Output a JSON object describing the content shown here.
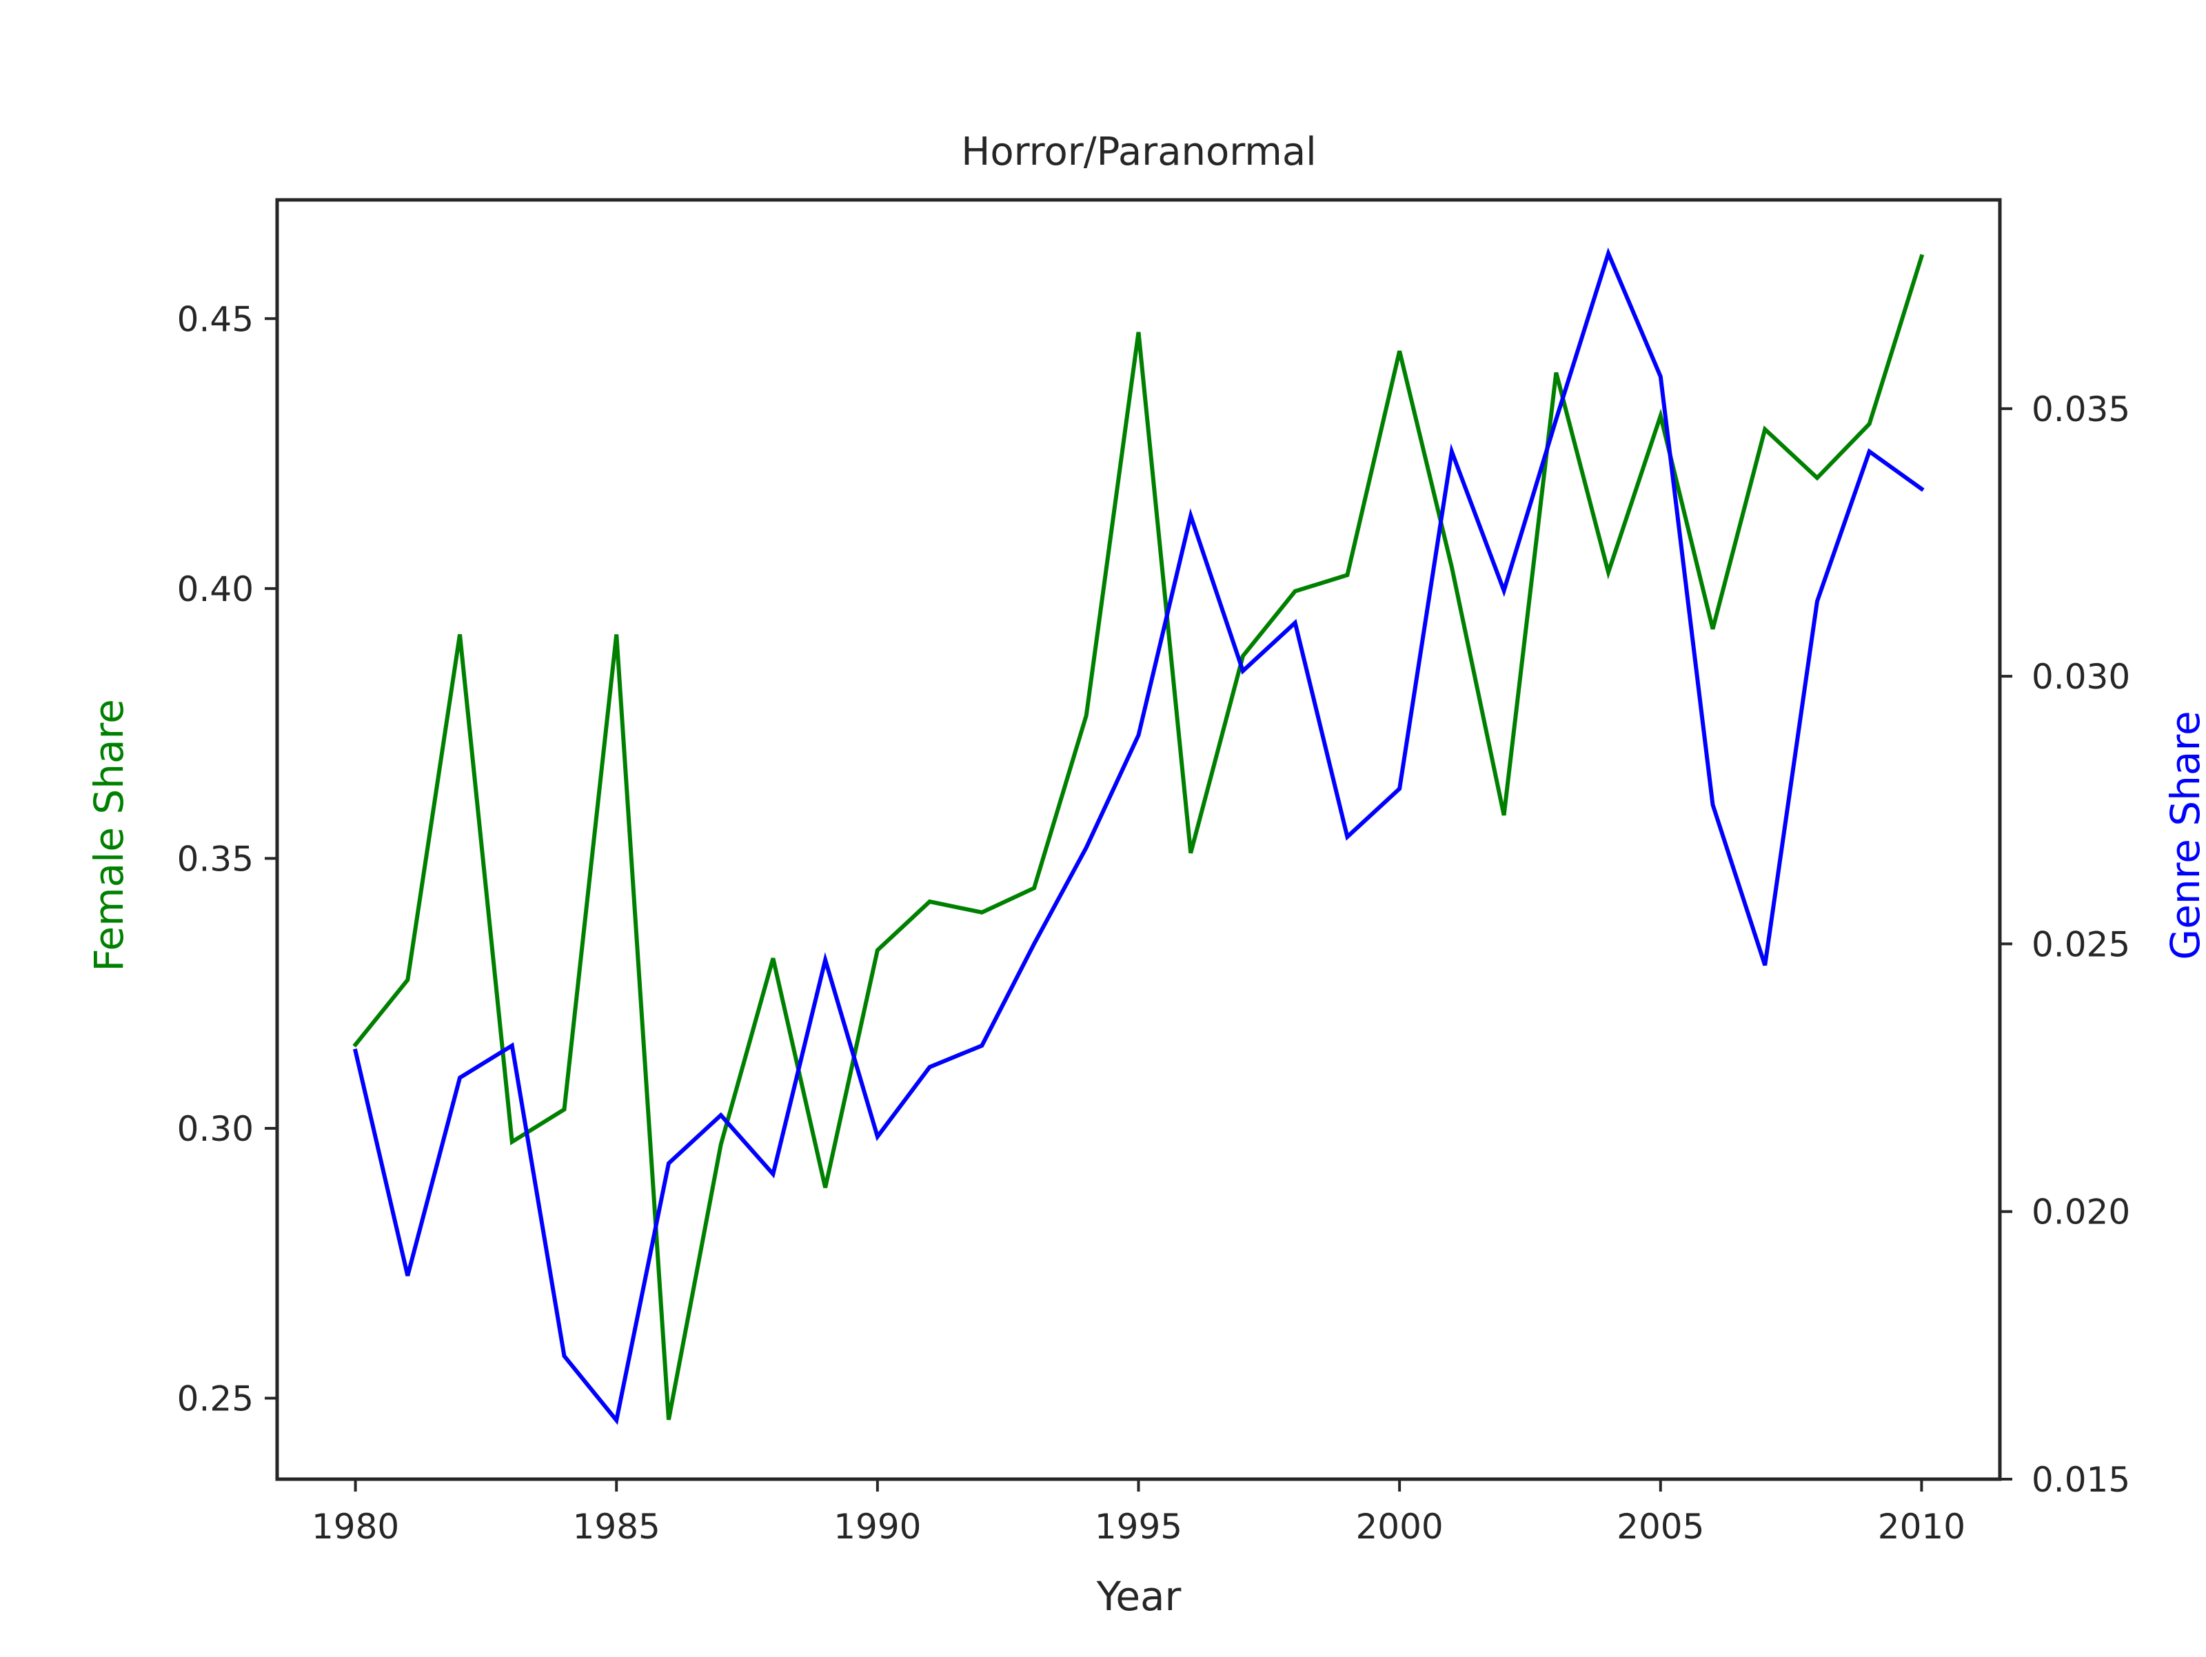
{
  "chart_data": {
    "type": "line",
    "title": "Horror/Paranormal",
    "xlabel": "Year",
    "ylabel_left": "Female Share",
    "ylabel_right": "Genre Share",
    "xlim": [
      1978.5,
      2011.5
    ],
    "ylim_left": [
      0.235,
      0.472
    ],
    "ylim_right": [
      0.015,
      0.0389
    ],
    "x_ticks": [
      1980,
      1985,
      1990,
      1995,
      2000,
      2005,
      2010
    ],
    "y_left_ticks": [
      0.25,
      0.3,
      0.35,
      0.4,
      0.45
    ],
    "y_right_ticks": [
      0.015,
      0.02,
      0.025,
      0.03,
      0.035
    ],
    "y_left_tick_labels": [
      "0.25",
      "0.30",
      "0.35",
      "0.40",
      "0.45"
    ],
    "y_right_tick_labels": [
      "0.015",
      "0.020",
      "0.025",
      "0.030",
      "0.035"
    ],
    "x": [
      1980,
      1981,
      1982,
      1983,
      1984,
      1985,
      1986,
      1987,
      1988,
      1989,
      1990,
      1991,
      1992,
      1993,
      1994,
      1995,
      1996,
      1997,
      1998,
      1999,
      2000,
      2001,
      2002,
      2003,
      2004,
      2005,
      2006,
      2007,
      2008,
      2009,
      2010
    ],
    "grid": false,
    "series": [
      {
        "axis": "left",
        "color": "#008000",
        "values": [
          0.3155,
          0.3275,
          0.3915,
          0.2975,
          0.3035,
          0.3915,
          0.246,
          0.297,
          0.3315,
          0.289,
          0.333,
          0.342,
          0.34,
          0.3445,
          0.3765,
          0.4475,
          0.351,
          0.3875,
          0.3995,
          0.4025,
          0.444,
          0.404,
          0.358,
          0.44,
          0.403,
          0.432,
          0.3925,
          0.4295,
          0.4205,
          0.4305,
          0.4615
        ]
      },
      {
        "axis": "right",
        "color": "#0000ff",
        "values": [
          0.023,
          0.0188,
          0.0225,
          0.0231,
          0.0173,
          0.0161,
          0.0209,
          0.0218,
          0.0207,
          0.0247,
          0.0214,
          0.0227,
          0.0231,
          0.025,
          0.0268,
          0.0289,
          0.033,
          0.0301,
          0.031,
          0.027,
          0.0279,
          0.0342,
          0.0316,
          0.0348,
          0.0379,
          0.0356,
          0.0276,
          0.0246,
          0.0314,
          0.0342,
          0.0335
        ]
      }
    ]
  }
}
